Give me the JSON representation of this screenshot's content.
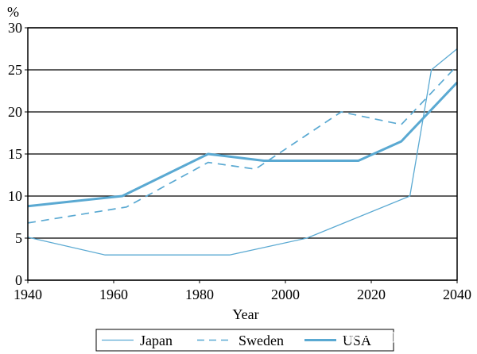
{
  "chart_data": {
    "type": "line",
    "title": "",
    "xlabel": "Year",
    "ylabel": "%",
    "xlim": [
      1940,
      2040
    ],
    "ylim": [
      0,
      30
    ],
    "x_ticks": [
      1940,
      1960,
      1980,
      2000,
      2020,
      2040
    ],
    "y_ticks": [
      0,
      5,
      10,
      15,
      20,
      25,
      30
    ],
    "grid": "horizontal",
    "legend_position": "bottom",
    "colors": {
      "series": "#5aa9d2",
      "grid": "#000000",
      "frame": "#000000"
    },
    "series": [
      {
        "name": "Japan",
        "style": "thin-solid",
        "points": [
          [
            1940,
            5.1
          ],
          [
            1958,
            3.0
          ],
          [
            1987,
            3.0
          ],
          [
            2005,
            5.0
          ],
          [
            2029,
            10.0
          ],
          [
            2034,
            25.0
          ],
          [
            2040,
            27.5
          ]
        ]
      },
      {
        "name": "Sweden",
        "style": "dashed",
        "points": [
          [
            1940,
            6.8
          ],
          [
            1963,
            8.7
          ],
          [
            1982,
            14.0
          ],
          [
            1993,
            13.2
          ],
          [
            2013,
            20.0
          ],
          [
            2027,
            18.5
          ],
          [
            2040,
            25.5
          ]
        ]
      },
      {
        "name": "USA",
        "style": "thick-solid",
        "points": [
          [
            1940,
            8.8
          ],
          [
            1962,
            10.0
          ],
          [
            1982,
            15.0
          ],
          [
            1995,
            14.2
          ],
          [
            2017,
            14.2
          ],
          [
            2027,
            16.5
          ],
          [
            2040,
            23.5
          ]
        ]
      }
    ]
  },
  "watermark": "知乎 @阿布呆洒哈哈哈"
}
